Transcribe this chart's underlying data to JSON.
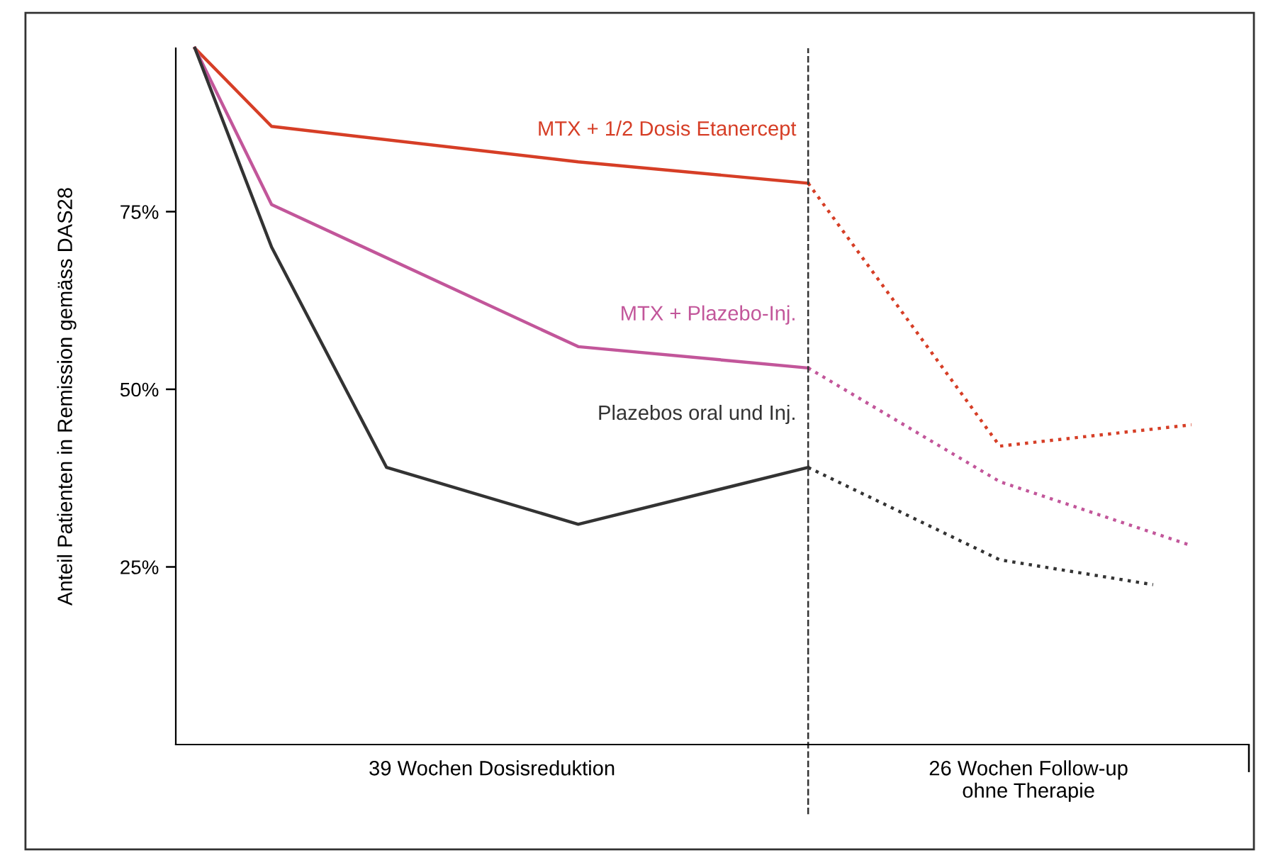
{
  "chart_data": {
    "type": "line",
    "ylabel": "Anteil Patienten in Remission gemäss DAS28",
    "categories": [
      null,
      null,
      null,
      null,
      null,
      null,
      null,
      null,
      null,
      null,
      null,
      null,
      null,
      null,
      null,
      null,
      null,
      null,
      null,
      null,
      null,
      null,
      null,
      null,
      null,
      null,
      null,
      null
    ],
    "series": [
      {
        "name": "MTX + 1/2 Dosis Etanercept",
        "color": "#d63e26",
        "line_style": "solid",
        "values": [
          98,
          null,
          87,
          null,
          null,
          null,
          null,
          null,
          null,
          null,
          82,
          null,
          null,
          null,
          null,
          null,
          79,
          null,
          null,
          null,
          null,
          null,
          null,
          null,
          null,
          null,
          null,
          null
        ]
      },
      {
        "color": "#d63e26",
        "line_style": "dotted",
        "values": [
          null,
          null,
          null,
          null,
          null,
          null,
          null,
          null,
          null,
          null,
          null,
          null,
          null,
          null,
          null,
          null,
          79,
          null,
          null,
          null,
          null,
          42,
          null,
          null,
          null,
          null,
          45,
          null
        ]
      },
      {
        "name": "MTX + Plazebo-Inj.",
        "color": "#c2569a",
        "line_style": "solid",
        "values": [
          98,
          null,
          76,
          null,
          null,
          null,
          null,
          null,
          null,
          null,
          56,
          null,
          null,
          null,
          null,
          null,
          53,
          null,
          null,
          null,
          null,
          null,
          null,
          null,
          null,
          null,
          null,
          null
        ]
      },
      {
        "color": "#c2569a",
        "line_style": "dotted",
        "values": [
          null,
          null,
          null,
          null,
          null,
          null,
          null,
          null,
          null,
          null,
          null,
          null,
          null,
          null,
          null,
          null,
          53,
          null,
          null,
          null,
          null,
          37,
          null,
          null,
          null,
          null,
          28,
          null
        ]
      },
      {
        "name": "Plazebos oral und Inj.",
        "color": "#333333",
        "line_style": "solid",
        "values": [
          98,
          null,
          70,
          null,
          null,
          39,
          null,
          null,
          null,
          null,
          31,
          null,
          null,
          null,
          null,
          null,
          39,
          null,
          null,
          null,
          null,
          null,
          null,
          null,
          null,
          null,
          null,
          null
        ]
      },
      {
        "color": "#333333",
        "line_style": "dotted",
        "values": [
          null,
          null,
          null,
          null,
          null,
          null,
          null,
          null,
          null,
          null,
          null,
          null,
          null,
          null,
          null,
          null,
          39,
          null,
          null,
          null,
          null,
          26,
          null,
          null,
          null,
          22.5,
          null,
          null
        ]
      }
    ],
    "ylim": [
      0,
      98
    ],
    "yticks": [
      {
        "value": 25,
        "label": "25%"
      },
      {
        "value": 50,
        "label": "50%"
      },
      {
        "value": 75,
        "label": "75%"
      }
    ],
    "annotations": [
      "39 Wochen Dosisreduktion",
      "26 Wochen Follow-up\nohne Therapie"
    ],
    "grid": false,
    "legend": false,
    "marker": "none"
  }
}
